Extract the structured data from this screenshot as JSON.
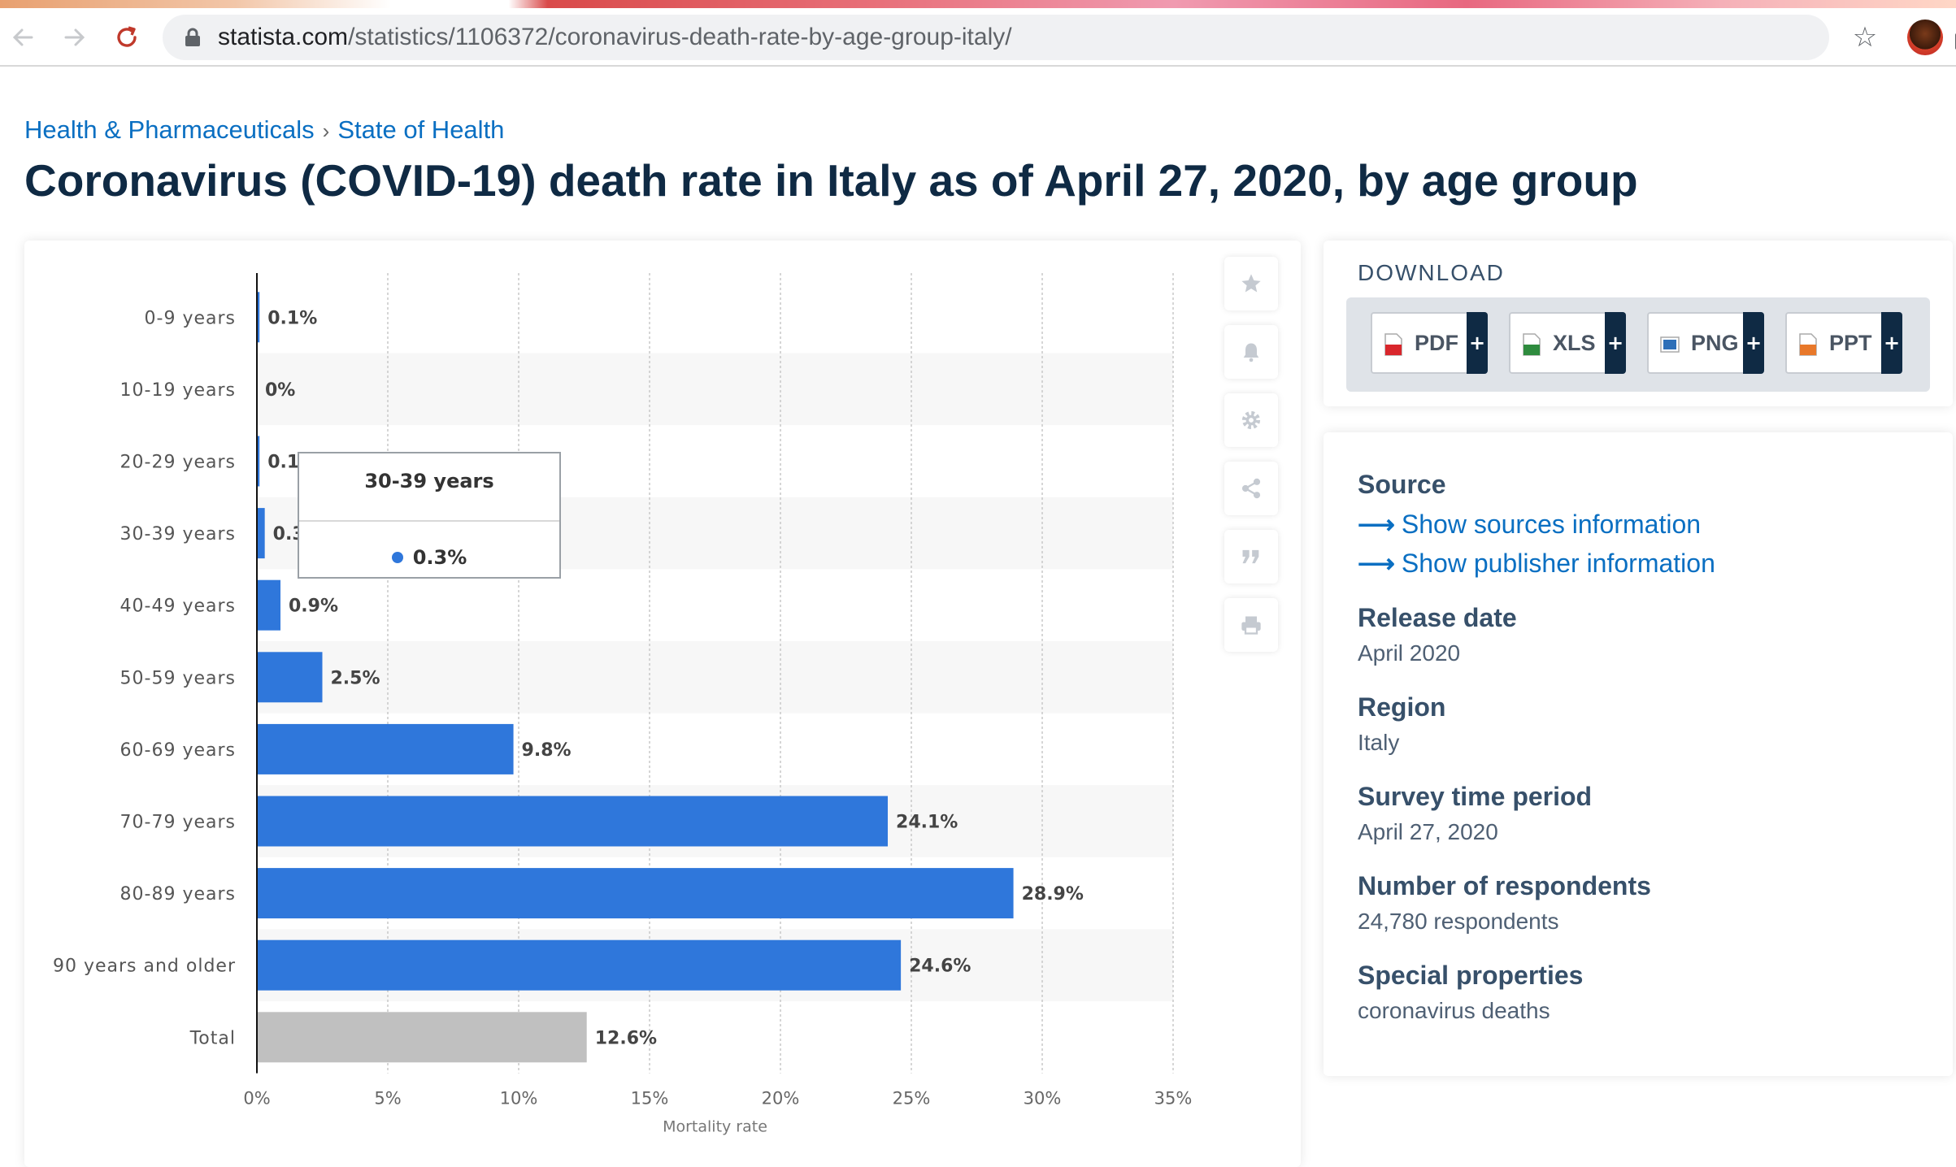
{
  "browser": {
    "url_host": "statista.com",
    "url_path": "/statistics/1106372/coronavirus-death-rate-by-age-group-italy/"
  },
  "breadcrumb": {
    "items": [
      "Health & Pharmaceuticals",
      "State of Health"
    ],
    "separator": "›"
  },
  "page_title": "Coronavirus (COVID-19) death rate in Italy as of April 27, 2020, by age group",
  "chart_data": {
    "type": "bar",
    "orientation": "horizontal",
    "categories": [
      "0-9 years",
      "10-19 years",
      "20-29 years",
      "30-39 years",
      "40-49 years",
      "50-59 years",
      "60-69 years",
      "70-79 years",
      "80-89 years",
      "90 years and older",
      "Total"
    ],
    "values": [
      0.1,
      0,
      0.1,
      0.3,
      0.9,
      2.5,
      9.8,
      24.1,
      28.9,
      24.6,
      12.6
    ],
    "labels": [
      "0.1%",
      "0%",
      "0.1%",
      "0.3%",
      "0.9%",
      "2.5%",
      "9.8%",
      "24.1%",
      "28.9%",
      "24.6%",
      "12.6%"
    ],
    "xlabel": "Mortality rate",
    "xlim": [
      0,
      35
    ],
    "xticks": [
      "0%",
      "5%",
      "10%",
      "15%",
      "20%",
      "25%",
      "30%",
      "35%"
    ],
    "grid": true,
    "colors": {
      "bar": "#2f77db",
      "total": "#c0c0c0",
      "band": "#f7f7f7"
    }
  },
  "tooltip": {
    "title": "30-39 years",
    "value": "0.3%"
  },
  "tools": [
    "star-icon",
    "bell-icon",
    "gear-icon",
    "share-icon",
    "quote-icon",
    "print-icon"
  ],
  "download": {
    "title": "DOWNLOAD",
    "buttons": [
      {
        "label": "PDF",
        "color": "#d9262c"
      },
      {
        "label": "XLS",
        "color": "#2e8b3e"
      },
      {
        "label": "PNG",
        "color": "#2d6fb8"
      },
      {
        "label": "PPT",
        "color": "#e8782a"
      }
    ],
    "plus": "+"
  },
  "info": {
    "source_label": "Source",
    "link_sources": "Show sources information",
    "link_publisher": "Show publisher information",
    "arrow": "⟶",
    "release_label": "Release date",
    "release_value": "April 2020",
    "region_label": "Region",
    "region_value": "Italy",
    "survey_label": "Survey time period",
    "survey_value": "April 27, 2020",
    "respondents_label": "Number of respondents",
    "respondents_value": "24,780 respondents",
    "special_label": "Special properties",
    "special_value": "coronavirus deaths"
  }
}
